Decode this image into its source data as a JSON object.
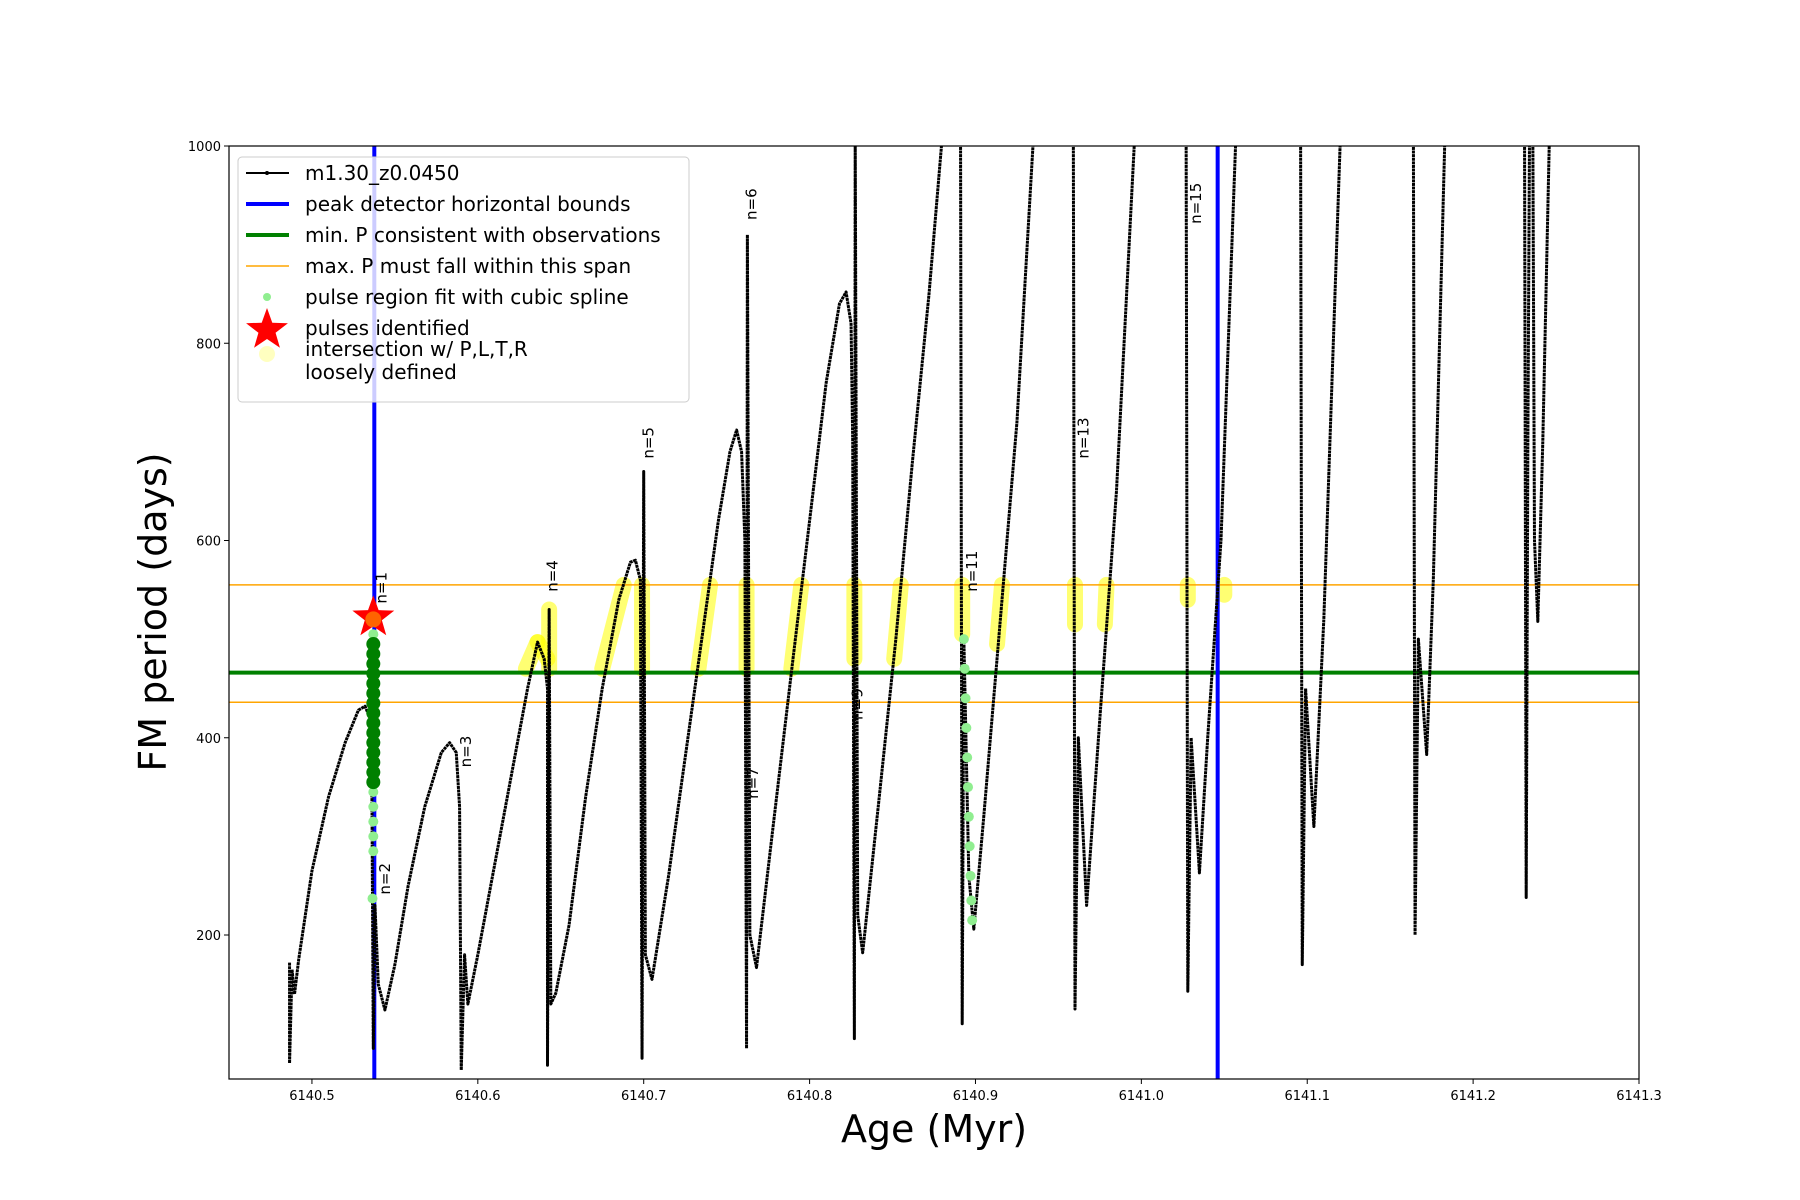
{
  "chart_data": {
    "type": "line",
    "xlabel": "Age (Myr)",
    "ylabel": "FM period (days)",
    "xlim": [
      6140.45,
      6141.3
    ],
    "ylim": [
      54,
      1000
    ],
    "xticks": [
      6140.5,
      6140.6,
      6140.7,
      6140.8,
      6140.9,
      6141.0,
      6141.1,
      6141.2,
      6141.3
    ],
    "xtick_labels": [
      "6140.5",
      "6140.6",
      "6140.7",
      "6140.8",
      "6140.9",
      "6141.0",
      "6141.1",
      "6141.2",
      "6141.3"
    ],
    "yticks": [
      200,
      400,
      600,
      800,
      1000
    ],
    "ytick_labels": [
      "200",
      "400",
      "600",
      "800",
      "1000"
    ],
    "grid": false,
    "legend_placement": "top-left",
    "legend": [
      {
        "label": "m1.30_z0.0450",
        "kind": "line-marker",
        "color": "#000000"
      },
      {
        "label": "peak detector horizontal bounds",
        "kind": "line",
        "color": "#0000ff"
      },
      {
        "label": "min. P consistent with observations",
        "kind": "line",
        "color": "#008000"
      },
      {
        "label": "max. P must fall within this span",
        "kind": "thin-line",
        "color": "#ffa500"
      },
      {
        "label": "pulse region fit with cubic spline",
        "kind": "dot",
        "color": "#90ee90"
      },
      {
        "label": "pulses identified",
        "kind": "star",
        "color": "#ff0000"
      },
      {
        "label": "intersection w/ P,L,T,R",
        "label2": "loosely defined",
        "kind": "big-dot",
        "color": "#ffffc0"
      }
    ],
    "series": [
      {
        "name": "m1.30_z0.0450",
        "color": "#000000",
        "segments": [
          [
            [
              6140.4865,
              172
            ],
            [
              6140.4865,
              70
            ],
            [
              6140.488,
              165
            ],
            [
              6140.4895,
              140
            ],
            [
              6140.492,
              175
            ],
            [
              6140.5,
              265
            ],
            [
              6140.51,
              340
            ],
            [
              6140.52,
              395
            ],
            [
              6140.528,
              428
            ],
            [
              6140.532,
              432
            ],
            [
              6140.535,
              420
            ],
            [
              6140.536,
              390
            ],
            [
              6140.537,
              85
            ],
            [
              6140.538,
              230
            ],
            [
              6140.54,
              150
            ],
            [
              6140.544,
              124
            ],
            [
              6140.55,
              170
            ],
            [
              6140.558,
              250
            ],
            [
              6140.568,
              330
            ],
            [
              6140.578,
              385
            ],
            [
              6140.583,
              395
            ],
            [
              6140.587,
              385
            ],
            [
              6140.589,
              330
            ],
            [
              6140.59,
              63
            ],
            [
              6140.592,
              180
            ],
            [
              6140.594,
              130
            ],
            [
              6140.6,
              180
            ],
            [
              6140.61,
              270
            ],
            [
              6140.62,
              360
            ],
            [
              6140.63,
              450
            ],
            [
              6140.636,
              497
            ],
            [
              6140.64,
              480
            ],
            [
              6140.642,
              450
            ],
            [
              6140.642,
              68
            ],
            [
              6140.643,
              530
            ],
            [
              6140.644,
              130
            ],
            [
              6140.647,
              141
            ],
            [
              6140.655,
              210
            ],
            [
              6140.665,
              340
            ],
            [
              6140.675,
              450
            ],
            [
              6140.685,
              540
            ],
            [
              6140.692,
              578
            ],
            [
              6140.695,
              580
            ],
            [
              6140.698,
              560
            ],
            [
              6140.699,
              75
            ],
            [
              6140.7,
              670
            ],
            [
              6140.701,
              180
            ],
            [
              6140.705,
              155
            ],
            [
              6140.715,
              260
            ],
            [
              6140.725,
              380
            ],
            [
              6140.735,
              500
            ],
            [
              6140.745,
              620
            ],
            [
              6140.752,
              690
            ],
            [
              6140.756,
              712
            ],
            [
              6140.759,
              690
            ],
            [
              6140.761,
              600
            ],
            [
              6140.762,
              85
            ],
            [
              6140.7625,
              910
            ],
            [
              6140.764,
              200
            ],
            [
              6140.768,
              167
            ],
            [
              6140.778,
              310
            ],
            [
              6140.79,
              480
            ],
            [
              6140.8,
              620
            ],
            [
              6140.81,
              760
            ],
            [
              6140.818,
              840
            ],
            [
              6140.822,
              852
            ],
            [
              6140.825,
              820
            ],
            [
              6140.826,
              700
            ],
            [
              6140.827,
              95
            ],
            [
              6140.8275,
              1010
            ],
            [
              6140.829,
              220
            ],
            [
              6140.832,
              182
            ],
            [
              6140.842,
              340
            ],
            [
              6140.852,
              500
            ],
            [
              6140.862,
              680
            ],
            [
              6140.872,
              850
            ],
            [
              6140.88,
              1010
            ]
          ],
          [
            [
              6140.891,
              1010
            ],
            [
              6140.892,
              110
            ],
            [
              6140.893,
              500
            ],
            [
              6140.896,
              260
            ],
            [
              6140.899,
              206
            ],
            [
              6140.905,
              320
            ],
            [
              6140.915,
              520
            ],
            [
              6140.925,
              720
            ],
            [
              6140.935,
              1010
            ]
          ],
          [
            [
              6140.959,
              1010
            ],
            [
              6140.96,
              125
            ],
            [
              6140.962,
              400
            ],
            [
              6140.967,
              230
            ],
            [
              6140.975,
              420
            ],
            [
              6140.985,
              650
            ],
            [
              6140.996,
              1010
            ]
          ],
          [
            [
              6141.027,
              1010
            ],
            [
              6141.028,
              143
            ],
            [
              6141.03,
              400
            ],
            [
              6141.035,
              263
            ],
            [
              6141.04,
              400
            ],
            [
              6141.048,
              600
            ],
            [
              6141.057,
              1010
            ]
          ],
          [
            [
              6141.096,
              1010
            ],
            [
              6141.097,
              170
            ],
            [
              6141.099,
              450
            ],
            [
              6141.104,
              310
            ],
            [
              6141.11,
              520
            ],
            [
              6141.12,
              1010
            ]
          ],
          [
            [
              6141.164,
              1010
            ],
            [
              6141.165,
              200
            ],
            [
              6141.167,
              500
            ],
            [
              6141.172,
              383
            ],
            [
              6141.176,
              560
            ],
            [
              6141.183,
              1010
            ]
          ],
          [
            [
              6141.231,
              1010
            ],
            [
              6141.232,
              238
            ],
            [
              6141.233,
              700
            ],
            [
              6141.234,
              1010
            ]
          ],
          [
            [
              6141.236,
              1010
            ],
            [
              6141.237,
              600
            ],
            [
              6141.239,
              518
            ],
            [
              6141.242,
              700
            ],
            [
              6141.246,
              1010
            ]
          ]
        ]
      }
    ],
    "vlines": {
      "color": "#0000ff",
      "x": [
        6140.5376,
        6141.046
      ]
    },
    "hlines_orange": {
      "color": "#ffa500",
      "y": [
        555,
        436
      ]
    },
    "hline_green": {
      "color": "#008000",
      "y": 466
    },
    "intersections": {
      "color": "#ffff00",
      "segments": [
        [
          6140.629,
          470,
          6140.636,
          497
        ],
        [
          6140.636,
          497,
          6140.642,
          480
        ],
        [
          6140.643,
          470,
          6140.643,
          530
        ],
        [
          6140.675,
          470,
          6140.688,
          555
        ],
        [
          6140.699,
          470,
          6140.699,
          555
        ],
        [
          6140.733,
          470,
          6140.74,
          555
        ],
        [
          6140.762,
          470,
          6140.762,
          555
        ],
        [
          6140.789,
          470,
          6140.795,
          555
        ],
        [
          6140.827,
          480,
          6140.827,
          555
        ],
        [
          6140.851,
          480,
          6140.855,
          555
        ],
        [
          6140.892,
          505,
          6140.892,
          555
        ],
        [
          6140.913,
          495,
          6140.916,
          555
        ],
        [
          6140.96,
          515,
          6140.96,
          555
        ],
        [
          6140.978,
          515,
          6140.979,
          555
        ],
        [
          6141.028,
          540,
          6141.028,
          555
        ],
        [
          6141.05,
          545,
          6141.05,
          555
        ]
      ]
    },
    "spline_points_dark": {
      "color": "#008000",
      "x": 6140.537,
      "y": [
        355,
        365,
        375,
        385,
        395,
        405,
        415,
        425,
        435,
        445,
        455,
        465,
        475,
        485,
        495
      ]
    },
    "spline_points_light": {
      "color": "#90ee90",
      "points": [
        [
          6140.537,
          285
        ],
        [
          6140.537,
          300
        ],
        [
          6140.537,
          315
        ],
        [
          6140.537,
          330
        ],
        [
          6140.537,
          345
        ],
        [
          6140.537,
          505
        ],
        [
          6140.5365,
          237
        ],
        [
          6140.893,
          500
        ],
        [
          6140.8935,
          470
        ],
        [
          6140.894,
          440
        ],
        [
          6140.8945,
          410
        ],
        [
          6140.895,
          380
        ],
        [
          6140.8955,
          350
        ],
        [
          6140.896,
          320
        ],
        [
          6140.8965,
          290
        ],
        [
          6140.897,
          260
        ],
        [
          6140.8975,
          235
        ],
        [
          6140.898,
          215
        ]
      ]
    },
    "pulses": [
      {
        "x": 6140.537,
        "y": 522,
        "color": "#ff0000"
      }
    ],
    "annotations": [
      {
        "text": "n=1",
        "x": 6140.545,
        "y": 536
      },
      {
        "text": "n=2",
        "x": 6140.547,
        "y": 241
      },
      {
        "text": "n=3",
        "x": 6140.596,
        "y": 370
      },
      {
        "text": "n=4",
        "x": 6140.648,
        "y": 548
      },
      {
        "text": "n=5",
        "x": 6140.706,
        "y": 683
      },
      {
        "text": "n=6",
        "x": 6140.768,
        "y": 925
      },
      {
        "text": "n=7",
        "x": 6140.769,
        "y": 338
      },
      {
        "text": "n=9",
        "x": 6140.832,
        "y": 418
      },
      {
        "text": "n=11",
        "x": 6140.901,
        "y": 548
      },
      {
        "text": "n=13",
        "x": 6140.968,
        "y": 683
      },
      {
        "text": "n=15",
        "x": 6141.036,
        "y": 921
      }
    ]
  }
}
